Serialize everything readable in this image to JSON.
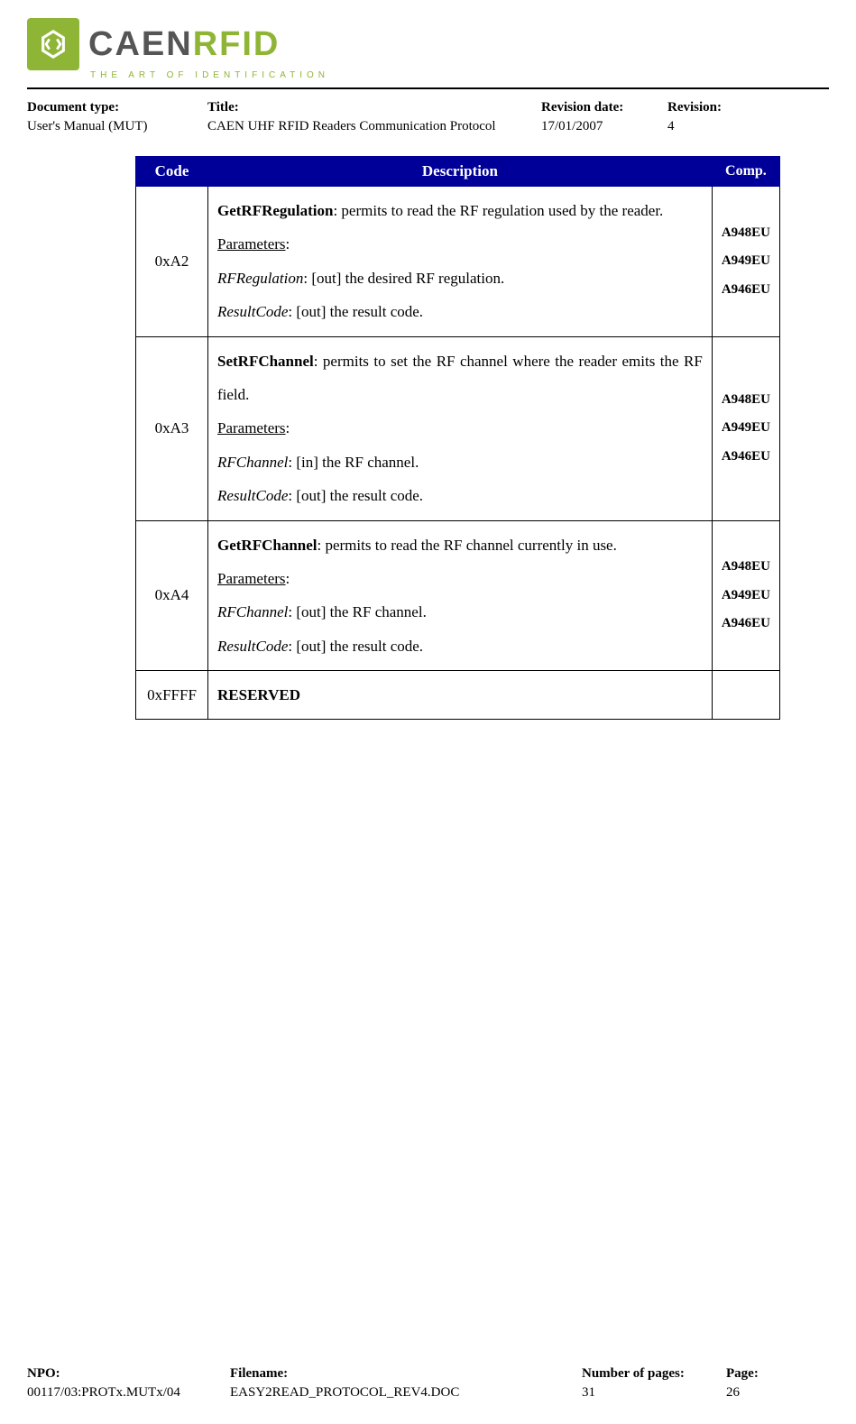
{
  "logo": {
    "brand_left": "CAEN",
    "brand_right": "RFID",
    "tagline": "THE ART OF IDENTIFICATION"
  },
  "header": {
    "doc_type_label": "Document type:",
    "doc_type_value": "User's Manual (MUT)",
    "title_label": "Title:",
    "title_value": "CAEN UHF RFID Readers Communication Protocol",
    "rev_date_label": "Revision date:",
    "rev_date_value": "17/01/2007",
    "revision_label": "Revision:",
    "revision_value": "4"
  },
  "table": {
    "headers": {
      "code": "Code",
      "description": "Description",
      "comp": "Comp."
    },
    "header_bg": "#000099",
    "header_fg": "#ffffff",
    "border_color": "#000000",
    "rows": [
      {
        "code": "0xA2",
        "fn": "GetRFRegulation",
        "fn_text": ": permits to read the RF regulation used by the reader.",
        "params_label": "Parameters",
        "params": [
          {
            "name": "RFRegulation",
            "text": ": [out] the desired RF regulation."
          },
          {
            "name": "ResultCode",
            "text": ": [out] the result code."
          }
        ],
        "comp": "A948EU\nA949EU\nA946EU"
      },
      {
        "code": "0xA3",
        "fn": "SetRFChannel",
        "fn_text": ": permits to set the RF channel where the reader emits the RF field.",
        "params_label": "Parameters",
        "params": [
          {
            "name": "RFChannel",
            "text": ": [in] the RF channel."
          },
          {
            "name": "ResultCode",
            "text": ": [out] the result code."
          }
        ],
        "comp": "A948EU\nA949EU\nA946EU"
      },
      {
        "code": "0xA4",
        "fn": "GetRFChannel",
        "fn_text": ": permits to read the RF channel currently in use.",
        "params_label": "Parameters",
        "params": [
          {
            "name": "RFChannel",
            "text": ": [out] the RF channel."
          },
          {
            "name": "ResultCode",
            "text": ": [out] the result code."
          }
        ],
        "comp": "A948EU\nA949EU\nA946EU"
      },
      {
        "code": "0xFFFF",
        "fn": "RESERVED",
        "fn_text": "",
        "params_label": "",
        "params": [],
        "comp": ""
      }
    ]
  },
  "footer": {
    "npo_label": "NPO:",
    "npo_value": "00117/03:PROTx.MUTx/04",
    "filename_label": "Filename:",
    "filename_value": "EASY2READ_PROTOCOL_REV4.DOC",
    "pages_label": "Number of pages:",
    "pages_value": "31",
    "page_label": "Page:",
    "page_value": "26"
  }
}
